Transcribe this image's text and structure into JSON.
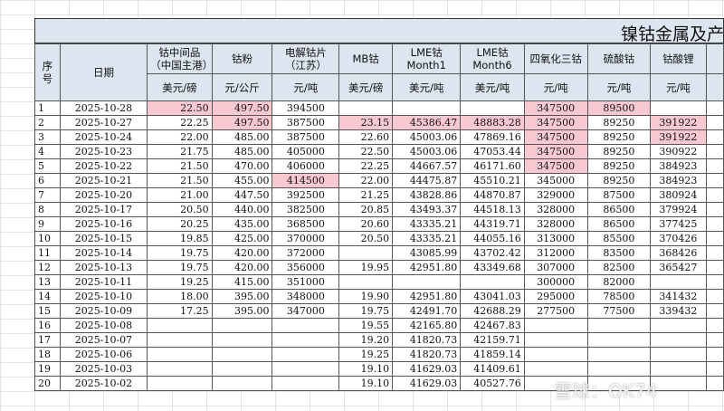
{
  "title": "镍钴金属及产",
  "table": {
    "headers": [
      "序号",
      "日期",
      "钴中间品\n（中国主港）",
      "钴粉",
      "电解钴片\n（江苏）",
      "MB钴",
      "LME钴\nMonth1",
      "LME钴\nMonth6",
      "四氧化三钴",
      "硫酸钴",
      "钴酸锂"
    ],
    "units": [
      null,
      null,
      "美元/磅",
      "元/公斤",
      "元/吨",
      "美元/磅",
      "美元/吨",
      "美元/吨",
      "元/吨",
      "元/吨",
      "元/吨"
    ],
    "rows": [
      [
        "1",
        "2025-10-28",
        "22.50",
        "497.50",
        "394500",
        null,
        null,
        null,
        "347500",
        "89500",
        null
      ],
      [
        "2",
        "2025-10-27",
        "22.25",
        "497.50",
        "387500",
        "23.15",
        "45386.47",
        "48883.28",
        "347500",
        "89250",
        "391922"
      ],
      [
        "3",
        "2025-10-24",
        "22.00",
        "485.00",
        "387500",
        "22.60",
        "45003.06",
        "47869.16",
        "347500",
        "89250",
        "391922"
      ],
      [
        "4",
        "2025-10-23",
        "21.75",
        "485.00",
        "405000",
        "22.50",
        "45003.06",
        "47053.44",
        "347500",
        "89250",
        "390922"
      ],
      [
        "5",
        "2025-10-22",
        "21.50",
        "470.00",
        "406000",
        "22.25",
        "44667.57",
        "46171.60",
        "347500",
        "89250",
        "384923"
      ],
      [
        "6",
        "2025-10-21",
        "21.50",
        "455.00",
        "414500",
        "22.00",
        "44475.87",
        "45510.21",
        "345000",
        "89250",
        "384923"
      ],
      [
        "7",
        "2025-10-20",
        "21.00",
        "447.50",
        "392500",
        "21.25",
        "43828.86",
        "44870.87",
        "329000",
        "87500",
        "380924"
      ],
      [
        "8",
        "2025-10-17",
        "20.50",
        "440.00",
        "382500",
        "20.85",
        "43493.37",
        "44518.13",
        "328000",
        "86500",
        "379924"
      ],
      [
        "9",
        "2025-10-16",
        "20.25",
        "435.00",
        "368500",
        "20.60",
        "43335.21",
        "44319.71",
        "328000",
        "86500",
        "377425"
      ],
      [
        "10",
        "2025-10-15",
        "19.85",
        "425.00",
        "370000",
        "20.50",
        "43335.21",
        "44055.16",
        "313000",
        "85500",
        "370426"
      ],
      [
        "11",
        "2025-10-14",
        "19.75",
        "420.00",
        "372000",
        null,
        "43085.99",
        "43702.42",
        "312000",
        "83500",
        "368426"
      ],
      [
        "12",
        "2025-10-13",
        "19.75",
        "420.00",
        "356000",
        "19.95",
        "42951.80",
        "43349.68",
        "307000",
        "82500",
        "365427"
      ],
      [
        "13",
        "2025-10-11",
        "19.25",
        "415.00",
        "351000",
        null,
        null,
        null,
        "300000",
        "82000",
        null
      ],
      [
        "14",
        "2025-10-10",
        "18.00",
        "395.00",
        "348000",
        "19.90",
        "42951.80",
        "43041.03",
        "295000",
        "78500",
        "341432"
      ],
      [
        "15",
        "2025-10-09",
        "17.25",
        "395.00",
        "347000",
        "19.75",
        "42491.70",
        "42688.29",
        "277500",
        "77500",
        "339432"
      ],
      [
        "16",
        "2025-10-08",
        null,
        null,
        null,
        "19.55",
        "42165.80",
        "42467.83",
        null,
        null,
        null
      ],
      [
        "17",
        "2025-10-07",
        null,
        null,
        null,
        "19.20",
        "41820.73",
        "42159.71",
        null,
        null,
        null
      ],
      [
        "18",
        "2025-10-06",
        null,
        null,
        null,
        "19.25",
        "41820.73",
        "41859.14",
        null,
        null,
        null
      ],
      [
        "19",
        "2025-10-03",
        null,
        null,
        null,
        "19.10",
        "41629.03",
        "41409.61",
        null,
        null,
        null
      ],
      [
        "20",
        "2025-10-02",
        null,
        null,
        null,
        "19.10",
        "41629.03",
        "40527.76",
        null,
        null,
        null
      ]
    ]
  },
  "watermark": "雪球：OK74"
}
